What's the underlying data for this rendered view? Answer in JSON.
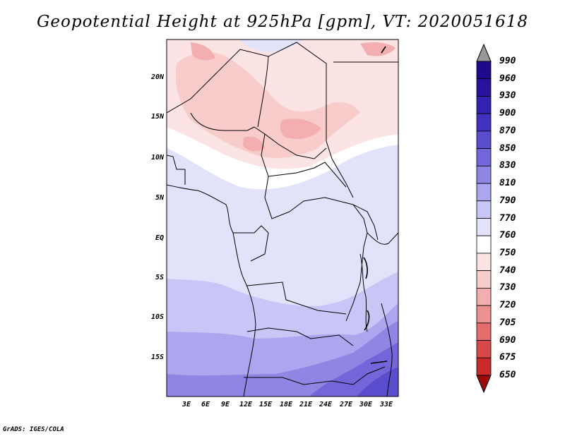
{
  "title": "Geopotential Height at 925hPa [gpm], VT: 2020051618",
  "credit": "GrADS: IGES/COLA",
  "map": {
    "lat_labels": [
      "20N",
      "15N",
      "10N",
      "5N",
      "EQ",
      "5S",
      "10S",
      "15S"
    ],
    "lon_labels": [
      "3E",
      "6E",
      "9E",
      "12E",
      "15E",
      "18E",
      "21E",
      "24E",
      "27E",
      "30E",
      "33E"
    ]
  },
  "colorbar": {
    "labels": [
      "990",
      "960",
      "930",
      "900",
      "870",
      "850",
      "830",
      "810",
      "790",
      "770",
      "760",
      "750",
      "740",
      "730",
      "720",
      "705",
      "690",
      "675",
      "650"
    ],
    "colors": [
      "#1e0a8c",
      "#2813a0",
      "#3322b2",
      "#4131c0",
      "#5a4ecf",
      "#7366da",
      "#8f86e4",
      "#aba6ee",
      "#c8c6f6",
      "#e2e2fb",
      "#ffffff",
      "#fde4e4",
      "#f9cccc",
      "#f3afaf",
      "#ec9090",
      "#e46c6c",
      "#d94848",
      "#c92a2a",
      "#b51616",
      "#9c0a0a"
    ]
  }
}
